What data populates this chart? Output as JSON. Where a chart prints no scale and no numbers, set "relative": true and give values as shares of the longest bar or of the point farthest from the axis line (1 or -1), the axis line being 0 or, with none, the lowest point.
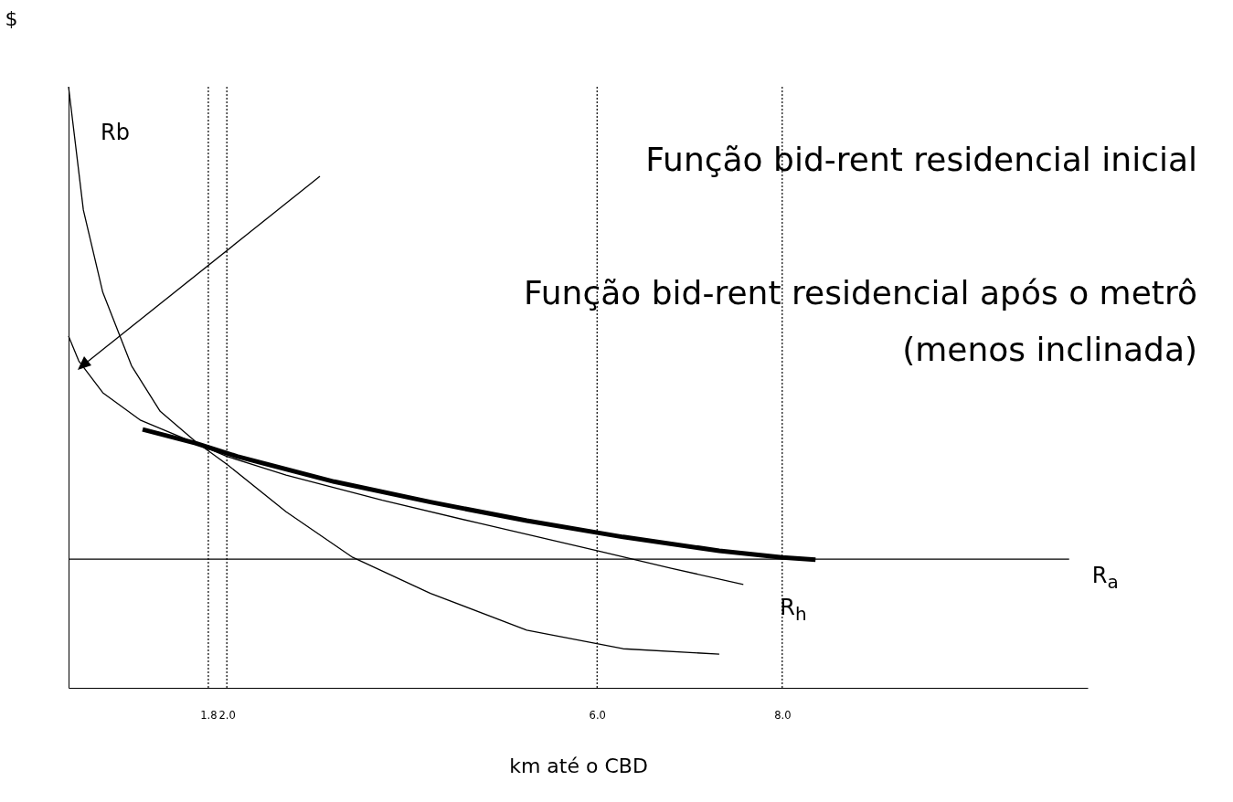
{
  "chart_data": {
    "type": "line",
    "relative": true,
    "xlabel": "km até o CBD",
    "ylabel": "$",
    "xlim": [
      0.29,
      11.3
    ],
    "xticks": [
      1.8,
      {
        "value": 2,
        "label": "2.0"
      },
      {
        "value": 6,
        "label": "6.0"
      },
      {
        "value": 8,
        "label": "8.0"
      }
    ],
    "grid": false,
    "marker": "none",
    "series": [
      {
        "name": "Rb",
        "color": "#000000",
        "x": [
          0.29,
          0.45,
          0.66,
          0.97,
          1.28,
          1.66,
          2.0,
          2.64,
          3.36,
          4.2,
          5.24,
          6.28,
          7.32
        ],
        "values": [
          1.0,
          0.795,
          0.658,
          0.536,
          0.46,
          0.41,
          0.372,
          0.293,
          0.217,
          0.157,
          0.096,
          0.065,
          0.056
        ]
      },
      {
        "name": "R$_{h}$",
        "color": "#000000",
        "x": [
          0.29,
          0.4,
          0.66,
          1.07,
          1.66,
          2.0,
          2.64,
          3.68,
          4.72,
          6.0,
          6.8,
          7.58
        ],
        "values": [
          0.585,
          0.544,
          0.491,
          0.445,
          0.407,
          0.385,
          0.354,
          0.312,
          0.274,
          0.228,
          0.199,
          0.172
        ]
      },
      {
        "color": "#000000",
        "x": [
          1.09,
          1.66,
          2.11,
          3.16,
          4.2,
          5.24,
          6.28,
          7.32,
          8.0,
          8.36
        ],
        "values": [
          0.43,
          0.407,
          0.385,
          0.343,
          0.309,
          0.278,
          0.251,
          0.228,
          0.217,
          0.213
        ]
      },
      {
        "name": "R$_{a}$",
        "color": "#000000",
        "x": [
          0.29,
          11.1
        ],
        "values": [
          0.214,
          0.214
        ]
      }
    ],
    "ref_lines": [
      {
        "axis": "x",
        "value": 1.8,
        "line_style": "dotted"
      },
      {
        "axis": "x",
        "value": 2,
        "line_style": "dotted"
      },
      {
        "axis": "x",
        "value": 6,
        "line_style": "dotted"
      },
      {
        "axis": "x",
        "value": 8,
        "line_style": "dotted"
      }
    ],
    "annotations": [
      "Função bid-rent residencial inicial",
      "Função bid-rent residencial após o metrô (menos inclinada)"
    ]
  }
}
